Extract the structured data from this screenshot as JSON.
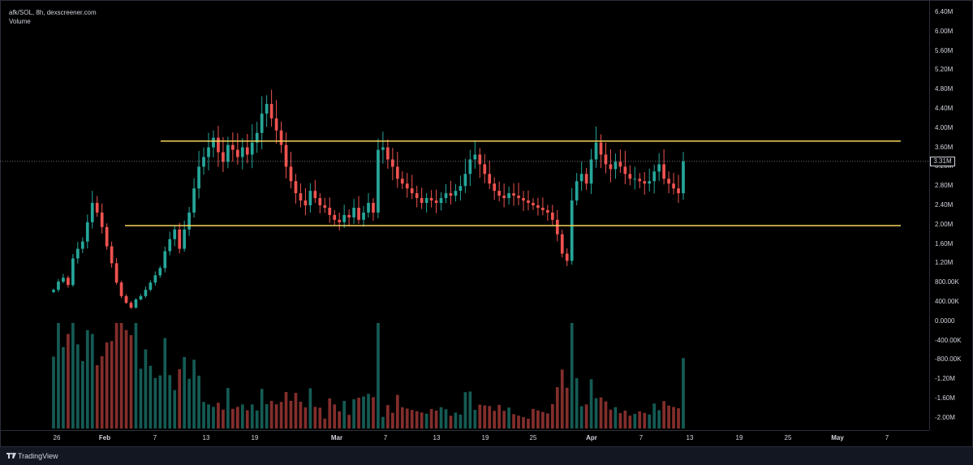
{
  "header": {
    "title": "afk/SOL, 8h, dexscreener.com",
    "indicator": "Volume"
  },
  "footer": {
    "brand": "TradingView"
  },
  "price_tag": "3.31M",
  "colors": {
    "up": "#26a69a",
    "down": "#ef5350",
    "level_lines": "#f5d65a",
    "background": "#000000"
  },
  "chart_data": {
    "type": "candlestick",
    "title": "afk/SOL, 8h, dexscreener.com",
    "price_axis": {
      "ticks": [
        "6.40M",
        "6.00M",
        "5.60M",
        "5.20M",
        "4.80M",
        "4.40M",
        "4.00M",
        "3.60M",
        "3.20M",
        "2.80M",
        "2.40M",
        "2.00M",
        "1.60M",
        "1.20M",
        "800.00K",
        "400.00K",
        "0.0000",
        "-400.00K",
        "-800.00K",
        "-1.20M",
        "-1.60M",
        "-2.00M"
      ],
      "ylim": [
        -2200000,
        6600000
      ]
    },
    "time_axis": {
      "ticks": [
        "26",
        "Feb",
        "7",
        "13",
        "19",
        "Mar",
        "7",
        "13",
        "19",
        "25",
        "Apr",
        "7",
        "13",
        "19",
        "25",
        "May",
        "7"
      ]
    },
    "last_price": 3310000,
    "levels": [
      {
        "name": "resistance",
        "value": 3730000
      },
      {
        "name": "support",
        "value": 1980000
      }
    ],
    "candles_8h_approx": {
      "start": "Jan 26",
      "interval": "8h",
      "closes": [
        650000,
        820000,
        900000,
        750000,
        1300000,
        1500000,
        1650000,
        2050000,
        2450000,
        2250000,
        1950000,
        1550000,
        1200000,
        800000,
        520000,
        380000,
        280000,
        450000,
        520000,
        650000,
        800000,
        950000,
        1100000,
        1450000,
        1700000,
        1900000,
        1500000,
        1900000,
        2250000,
        2750000,
        3200000,
        3400000,
        3600000,
        3800000,
        3500000,
        3300000,
        3650000,
        3550000,
        3400000,
        3600000,
        3450000,
        3700000,
        3900000,
        4300000,
        4500000,
        4200000,
        3950000,
        3650000,
        3200000,
        2900000,
        2650000,
        2500000,
        2400000,
        2700000,
        2550000,
        2400000,
        2350000,
        2200000,
        2100000,
        2050000,
        2200000,
        2150000,
        2350000,
        2100000,
        2250000,
        2450000,
        2250000,
        3550000,
        3600000,
        3350000,
        3200000,
        2950000,
        2850000,
        2750000,
        2650000,
        2550000,
        2450000,
        2550000,
        2500000,
        2450000,
        2550000,
        2650000,
        2600000,
        2700000,
        2800000,
        3050000,
        3350000,
        3450000,
        3250000,
        3050000,
        2850000,
        2700000,
        2600000,
        2550000,
        2650000,
        2600000,
        2550000,
        2500000,
        2450000,
        2400000,
        2350000,
        2300000,
        2250000,
        2100000,
        1800000,
        1400000,
        1250000,
        2500000,
        2900000,
        3050000,
        2850000,
        3350000,
        3700000,
        3450000,
        3250000,
        3150000,
        3300000,
        3200000,
        3050000,
        2950000,
        2950000,
        2900000,
        2850000,
        2900000,
        3100000,
        3250000,
        2950000,
        2850000,
        2750000,
        2650000,
        3310000
      ]
    }
  }
}
